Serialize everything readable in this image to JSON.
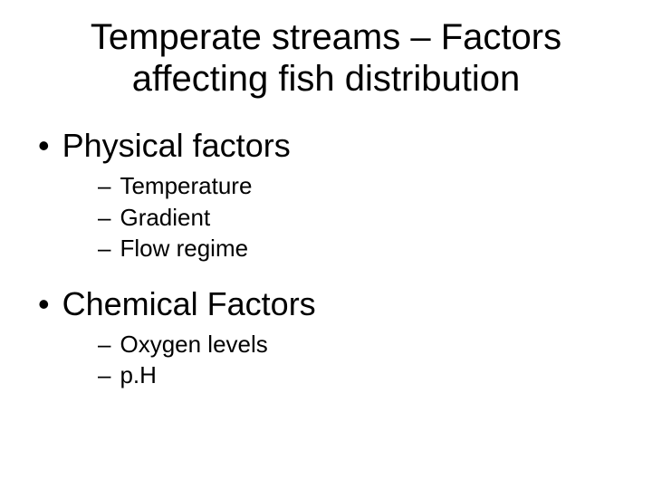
{
  "title": "Temperate streams – Factors affecting fish distribution",
  "title_fontsize": 40,
  "background_color": "#ffffff",
  "text_color": "#000000",
  "font_family": "Comic Sans MS",
  "sections": [
    {
      "heading": "Physical factors",
      "heading_fontsize": 36,
      "bullet": "•",
      "items": [
        {
          "text": "Temperature",
          "bullet": "–",
          "fontsize": 26
        },
        {
          "text": "Gradient",
          "bullet": "–",
          "fontsize": 26
        },
        {
          "text": "Flow regime",
          "bullet": "–",
          "fontsize": 26
        }
      ]
    },
    {
      "heading": "Chemical Factors",
      "heading_fontsize": 36,
      "bullet": "•",
      "items": [
        {
          "text": "Oxygen levels",
          "bullet": "–",
          "fontsize": 26
        },
        {
          "text": "p.H",
          "bullet": "–",
          "fontsize": 26
        }
      ]
    }
  ]
}
